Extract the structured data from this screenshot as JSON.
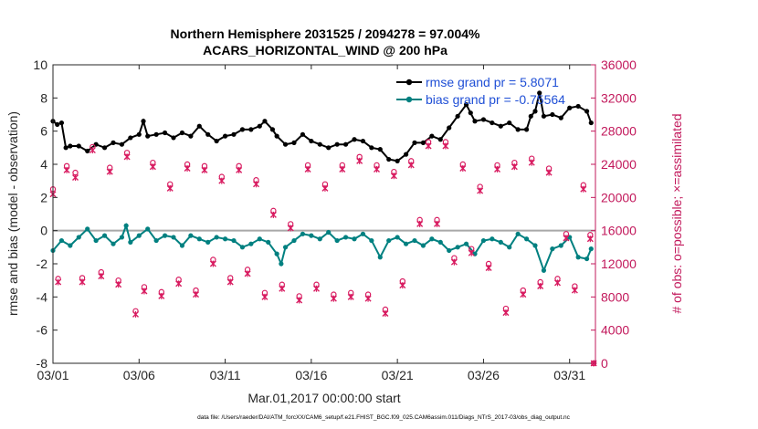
{
  "chart_data": {
    "type": "line",
    "title_line1": "Northern Hemisphere 2031525 / 2094278 = 97.004%",
    "title_line2": "ACARS_HORIZONTAL_WIND @ 200 hPa",
    "xlabel": "Mar.01,2017 00:00:00 start",
    "ylabel_left": "rmse and bias (model - observation)",
    "ylabel_right": "# of obs: o=possible; ×=assimilated",
    "footer": "data file: /Users/raeder/DAI/ATM_forcXX/CAM6_setup/f.e21.FHIST_BGC.f09_025.CAM6assim.011/Diags_NTrS_2017-03/obs_diag_output.nc",
    "xlim": [
      0,
      31.5
    ],
    "ylim_left": [
      -8,
      10
    ],
    "ylim_right": [
      0,
      36000
    ],
    "xticks": [
      0,
      5,
      10,
      15,
      20,
      25,
      30
    ],
    "xtick_labels": [
      "03/01",
      "03/06",
      "03/11",
      "03/16",
      "03/21",
      "03/26",
      "03/31"
    ],
    "yticks_left": [
      -8,
      -6,
      -4,
      -2,
      0,
      2,
      4,
      6,
      8,
      10
    ],
    "yticks_right": [
      0,
      4000,
      8000,
      12000,
      16000,
      20000,
      24000,
      28000,
      32000,
      36000
    ],
    "ytick_labels_right": [
      "0",
      "4000",
      "8000",
      "12000",
      "16000",
      "20000",
      "24000",
      "28000",
      "32000",
      "36000"
    ],
    "series": [
      {
        "name": "rmse",
        "legend": "rmse grand pr = 5.8071",
        "color": "#000000",
        "axis": "left",
        "anchors": [
          [
            0,
            6.6
          ],
          [
            0.25,
            6.4
          ],
          [
            0.5,
            6.5
          ],
          [
            0.75,
            5.0
          ],
          [
            1.0,
            5.1
          ],
          [
            1.5,
            5.1
          ],
          [
            2.0,
            4.8
          ],
          [
            2.5,
            5.2
          ],
          [
            3.0,
            5.0
          ],
          [
            3.5,
            5.3
          ],
          [
            4.0,
            5.2
          ],
          [
            4.5,
            5.6
          ],
          [
            5.0,
            5.8
          ],
          [
            5.25,
            6.6
          ],
          [
            5.5,
            5.7
          ],
          [
            6.0,
            5.8
          ],
          [
            6.5,
            5.9
          ],
          [
            7.0,
            5.6
          ],
          [
            7.5,
            5.9
          ],
          [
            8.0,
            5.7
          ],
          [
            8.5,
            6.3
          ],
          [
            9.0,
            5.8
          ],
          [
            9.5,
            5.4
          ],
          [
            10.0,
            5.7
          ],
          [
            10.5,
            5.8
          ],
          [
            11.0,
            6.1
          ],
          [
            11.5,
            6.1
          ],
          [
            12.0,
            6.3
          ],
          [
            12.3,
            6.6
          ],
          [
            12.75,
            6.1
          ],
          [
            13.0,
            5.7
          ],
          [
            13.5,
            5.2
          ],
          [
            14.0,
            5.3
          ],
          [
            14.5,
            5.8
          ],
          [
            15.0,
            5.4
          ],
          [
            15.5,
            5.2
          ],
          [
            16.0,
            5.0
          ],
          [
            16.5,
            5.2
          ],
          [
            17.0,
            5.2
          ],
          [
            17.5,
            5.5
          ],
          [
            18.0,
            5.4
          ],
          [
            18.5,
            5.0
          ],
          [
            19.0,
            4.9
          ],
          [
            19.5,
            4.3
          ],
          [
            20.0,
            4.2
          ],
          [
            20.5,
            4.6
          ],
          [
            21.0,
            5.3
          ],
          [
            21.5,
            5.3
          ],
          [
            22.0,
            5.7
          ],
          [
            22.5,
            5.5
          ],
          [
            23.0,
            6.2
          ],
          [
            23.5,
            6.9
          ],
          [
            24.0,
            7.6
          ],
          [
            24.25,
            7.1
          ],
          [
            24.5,
            6.6
          ],
          [
            25.0,
            6.7
          ],
          [
            25.5,
            6.5
          ],
          [
            26.0,
            6.3
          ],
          [
            26.5,
            6.5
          ],
          [
            27.0,
            6.1
          ],
          [
            27.5,
            6.1
          ],
          [
            27.75,
            6.9
          ],
          [
            28.0,
            7.2
          ],
          [
            28.25,
            8.3
          ],
          [
            28.5,
            6.9
          ],
          [
            29.0,
            7.0
          ],
          [
            29.5,
            6.8
          ],
          [
            30.0,
            7.4
          ],
          [
            30.5,
            7.5
          ],
          [
            31.0,
            7.2
          ],
          [
            31.25,
            6.5
          ]
        ]
      },
      {
        "name": "bias",
        "legend": "bias grand pr = -0.75564",
        "color": "#008080",
        "axis": "left",
        "anchors": [
          [
            0,
            -1.2
          ],
          [
            0.5,
            -0.6
          ],
          [
            1.0,
            -0.9
          ],
          [
            1.5,
            -0.4
          ],
          [
            2.0,
            0.1
          ],
          [
            2.5,
            -0.6
          ],
          [
            3.0,
            -0.3
          ],
          [
            3.5,
            -0.8
          ],
          [
            4.0,
            -0.4
          ],
          [
            4.25,
            0.3
          ],
          [
            4.5,
            -0.7
          ],
          [
            5.0,
            -0.3
          ],
          [
            5.5,
            0.1
          ],
          [
            6.0,
            -0.6
          ],
          [
            6.5,
            -0.3
          ],
          [
            7.0,
            -0.4
          ],
          [
            7.5,
            -0.9
          ],
          [
            8.0,
            -0.3
          ],
          [
            8.5,
            -0.5
          ],
          [
            9.0,
            -0.7
          ],
          [
            9.5,
            -0.4
          ],
          [
            10.0,
            -0.5
          ],
          [
            10.5,
            -0.6
          ],
          [
            11.0,
            -1.0
          ],
          [
            11.5,
            -0.8
          ],
          [
            12.0,
            -0.5
          ],
          [
            12.5,
            -0.7
          ],
          [
            13.0,
            -1.4
          ],
          [
            13.25,
            -2.0
          ],
          [
            13.5,
            -1.0
          ],
          [
            14.0,
            -0.6
          ],
          [
            14.5,
            -0.2
          ],
          [
            15.0,
            -0.3
          ],
          [
            15.5,
            -0.5
          ],
          [
            16.0,
            -0.1
          ],
          [
            16.5,
            -0.6
          ],
          [
            17.0,
            -0.4
          ],
          [
            17.5,
            -0.5
          ],
          [
            18.0,
            -0.2
          ],
          [
            18.5,
            -0.6
          ],
          [
            19.0,
            -1.6
          ],
          [
            19.5,
            -0.6
          ],
          [
            20.0,
            -0.4
          ],
          [
            20.5,
            -0.8
          ],
          [
            21.0,
            -0.6
          ],
          [
            21.5,
            -0.9
          ],
          [
            22.0,
            -0.5
          ],
          [
            22.5,
            -0.7
          ],
          [
            23.0,
            -1.2
          ],
          [
            23.5,
            -1.0
          ],
          [
            24.0,
            -0.8
          ],
          [
            24.5,
            -1.4
          ],
          [
            25.0,
            -0.6
          ],
          [
            25.5,
            -0.5
          ],
          [
            26.0,
            -0.7
          ],
          [
            26.5,
            -1.0
          ],
          [
            27.0,
            -0.2
          ],
          [
            27.5,
            -0.5
          ],
          [
            28.0,
            -0.9
          ],
          [
            28.5,
            -2.4
          ],
          [
            29.0,
            -1.1
          ],
          [
            29.5,
            -0.9
          ],
          [
            30.0,
            -0.4
          ],
          [
            30.5,
            -1.6
          ],
          [
            31.0,
            -1.7
          ],
          [
            31.25,
            -1.1
          ]
        ]
      },
      {
        "name": "obs_possible",
        "marker": "o",
        "color": "#d81b60",
        "axis": "right",
        "anchors": [
          [
            0,
            21000
          ],
          [
            0.3,
            10200
          ],
          [
            0.8,
            23800
          ],
          [
            1.3,
            23000
          ],
          [
            1.7,
            10300
          ],
          [
            2.3,
            26100
          ],
          [
            2.8,
            11000
          ],
          [
            3.3,
            23600
          ],
          [
            3.8,
            10000
          ],
          [
            4.3,
            25400
          ],
          [
            4.8,
            6300
          ],
          [
            5.3,
            9200
          ],
          [
            5.8,
            24200
          ],
          [
            6.3,
            8600
          ],
          [
            6.8,
            21600
          ],
          [
            7.3,
            10100
          ],
          [
            7.8,
            24000
          ],
          [
            8.3,
            8800
          ],
          [
            8.8,
            23800
          ],
          [
            9.3,
            12500
          ],
          [
            9.8,
            22500
          ],
          [
            10.3,
            10300
          ],
          [
            10.8,
            23800
          ],
          [
            11.3,
            11300
          ],
          [
            11.8,
            22100
          ],
          [
            12.3,
            8500
          ],
          [
            12.8,
            18400
          ],
          [
            13.3,
            9500
          ],
          [
            13.8,
            16800
          ],
          [
            14.3,
            8100
          ],
          [
            14.8,
            23900
          ],
          [
            15.3,
            9500
          ],
          [
            15.8,
            21600
          ],
          [
            16.3,
            8300
          ],
          [
            16.8,
            23900
          ],
          [
            17.3,
            8500
          ],
          [
            17.8,
            24900
          ],
          [
            18.3,
            8300
          ],
          [
            18.8,
            23900
          ],
          [
            19.3,
            6500
          ],
          [
            19.8,
            23100
          ],
          [
            20.3,
            9900
          ],
          [
            20.8,
            24400
          ],
          [
            21.3,
            17300
          ],
          [
            21.8,
            26700
          ],
          [
            22.3,
            17300
          ],
          [
            22.8,
            26700
          ],
          [
            23.3,
            12700
          ],
          [
            23.8,
            24000
          ],
          [
            24.3,
            13800
          ],
          [
            24.8,
            21300
          ],
          [
            25.3,
            12000
          ],
          [
            25.8,
            23900
          ],
          [
            26.3,
            6600
          ],
          [
            26.8,
            24200
          ],
          [
            27.3,
            8800
          ],
          [
            27.8,
            24700
          ],
          [
            28.3,
            9800
          ],
          [
            28.8,
            23500
          ],
          [
            29.3,
            10200
          ],
          [
            29.8,
            15600
          ],
          [
            30.3,
            9300
          ],
          [
            30.8,
            21500
          ],
          [
            31.2,
            15500
          ],
          [
            31.4,
            0
          ]
        ]
      },
      {
        "name": "obs_assimilated",
        "marker": "x",
        "color": "#d81b60",
        "axis": "right",
        "anchors": [
          [
            0,
            20400
          ],
          [
            0.3,
            9800
          ],
          [
            0.8,
            23300
          ],
          [
            1.3,
            22400
          ],
          [
            1.7,
            9800
          ],
          [
            2.3,
            25700
          ],
          [
            2.8,
            10500
          ],
          [
            3.3,
            23100
          ],
          [
            3.8,
            9500
          ],
          [
            4.3,
            24900
          ],
          [
            4.8,
            5900
          ],
          [
            5.3,
            8700
          ],
          [
            5.8,
            23700
          ],
          [
            6.3,
            8100
          ],
          [
            6.8,
            21100
          ],
          [
            7.3,
            9600
          ],
          [
            7.8,
            23500
          ],
          [
            8.3,
            8300
          ],
          [
            8.8,
            23300
          ],
          [
            9.3,
            12000
          ],
          [
            9.8,
            22000
          ],
          [
            10.3,
            9800
          ],
          [
            10.8,
            23300
          ],
          [
            11.3,
            10800
          ],
          [
            11.8,
            21600
          ],
          [
            12.3,
            8000
          ],
          [
            12.8,
            17900
          ],
          [
            13.3,
            9000
          ],
          [
            13.8,
            16300
          ],
          [
            14.3,
            7600
          ],
          [
            14.8,
            23400
          ],
          [
            15.3,
            9000
          ],
          [
            15.8,
            21100
          ],
          [
            16.3,
            7800
          ],
          [
            16.8,
            23400
          ],
          [
            17.3,
            8000
          ],
          [
            17.8,
            24400
          ],
          [
            18.3,
            7800
          ],
          [
            18.8,
            23400
          ],
          [
            19.3,
            6000
          ],
          [
            19.8,
            22600
          ],
          [
            20.3,
            9400
          ],
          [
            20.8,
            23900
          ],
          [
            21.3,
            16800
          ],
          [
            21.8,
            26200
          ],
          [
            22.3,
            16800
          ],
          [
            22.8,
            26200
          ],
          [
            23.3,
            12200
          ],
          [
            23.8,
            23500
          ],
          [
            24.3,
            13300
          ],
          [
            24.8,
            20800
          ],
          [
            25.3,
            11500
          ],
          [
            25.8,
            23400
          ],
          [
            26.3,
            6100
          ],
          [
            26.8,
            23700
          ],
          [
            27.3,
            8300
          ],
          [
            27.8,
            24200
          ],
          [
            28.3,
            9300
          ],
          [
            28.8,
            23000
          ],
          [
            29.3,
            9700
          ],
          [
            29.8,
            15100
          ],
          [
            30.3,
            8800
          ],
          [
            30.8,
            21000
          ],
          [
            31.2,
            15000
          ],
          [
            31.4,
            0
          ]
        ]
      }
    ],
    "zero_line": 0,
    "legend_position": "top-right",
    "grid": false
  }
}
